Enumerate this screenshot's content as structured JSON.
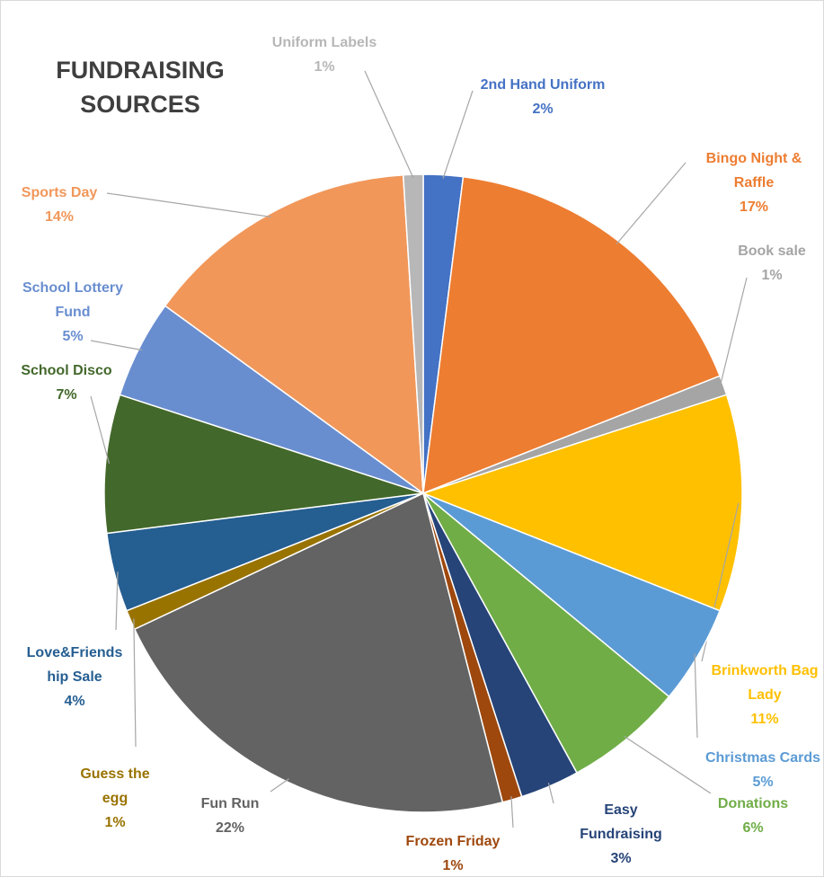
{
  "chart_data": {
    "type": "pie",
    "title": "FUNDRAISING SOURCES",
    "categories": [
      "2nd Hand Uniform",
      "Bingo Night & Raffle",
      "Book sale",
      "Brinkworth Bag Lady",
      "Christmas Cards",
      "Donations",
      "Easy Fundraising",
      "Frozen Friday",
      "Fun Run",
      "Guess the egg",
      "Love&Friendship Sale",
      "School Disco",
      "School Lottery Fund",
      "Sports Day",
      "Uniform Labels"
    ],
    "values": [
      2,
      17,
      1,
      11,
      5,
      6,
      3,
      1,
      22,
      1,
      4,
      7,
      5,
      14,
      1
    ],
    "value_labels": [
      "2%",
      "17%",
      "1%",
      "11%",
      "5%",
      "6%",
      "3%",
      "1%",
      "22%",
      "1%",
      "4%",
      "7%",
      "5%",
      "14%",
      "1%"
    ],
    "colors": [
      "#4472c4",
      "#ed7d31",
      "#a5a5a5",
      "#ffc000",
      "#5b9bd5",
      "#70ad47",
      "#264478",
      "#9e480e",
      "#636363",
      "#997300",
      "#255e91",
      "#43682b",
      "#698ed0",
      "#f1975a",
      "#b7b7b7"
    ]
  }
}
